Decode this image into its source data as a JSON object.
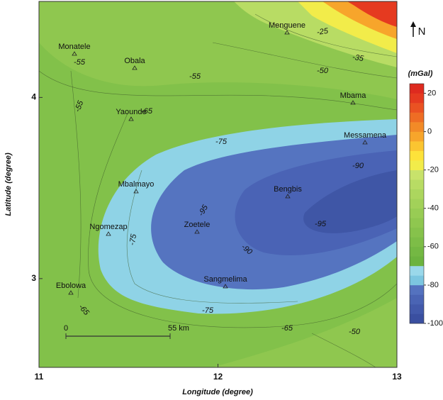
{
  "map": {
    "x_label": "Longitude (degree)",
    "y_label": "Latitude (degree)",
    "xlim": [
      11,
      13
    ],
    "xticks": [
      11,
      12,
      13
    ],
    "ylim": [
      2.51,
      4.53
    ],
    "yticks": [
      3,
      4
    ],
    "north": "N",
    "towns": [
      "Menguene",
      "Monatele",
      "Obala",
      "Yaounde",
      "Mbama",
      "Messamena",
      "Mbalmayo",
      "Bengbis",
      "Ngomezap",
      "Zoetele",
      "Sangmelima",
      "Ebolowa"
    ],
    "contour_labels": [
      -25,
      -35,
      -55,
      -55,
      -50,
      -55,
      -65,
      -75,
      -90,
      -95,
      -95,
      -75,
      -90,
      -75,
      -65,
      -50,
      -65
    ],
    "scale_bar": [
      0,
      "55 km"
    ],
    "colorbar": {
      "unit": "(mGal)",
      "lim": [
        -100,
        25
      ],
      "ticks": [
        20,
        0,
        -20,
        -40,
        -60,
        -80,
        -100
      ],
      "colors": [
        "#3a4fa0",
        "#4259aa",
        "#4a64b4",
        "#5472bf",
        "#7cc6e0",
        "#9ad8ea",
        "#6cb33f",
        "#74b843",
        "#7dbd47",
        "#86c24b",
        "#8fc74f",
        "#98cc54",
        "#a2d159",
        "#acd65e",
        "#b8dc64",
        "#c8e26b",
        "#f2ec4a",
        "#fde23a",
        "#fbc531",
        "#f7a52b",
        "#f28a27",
        "#ee6d24",
        "#ea5222",
        "#e53a20",
        "#de2a1f"
      ]
    }
  }
}
